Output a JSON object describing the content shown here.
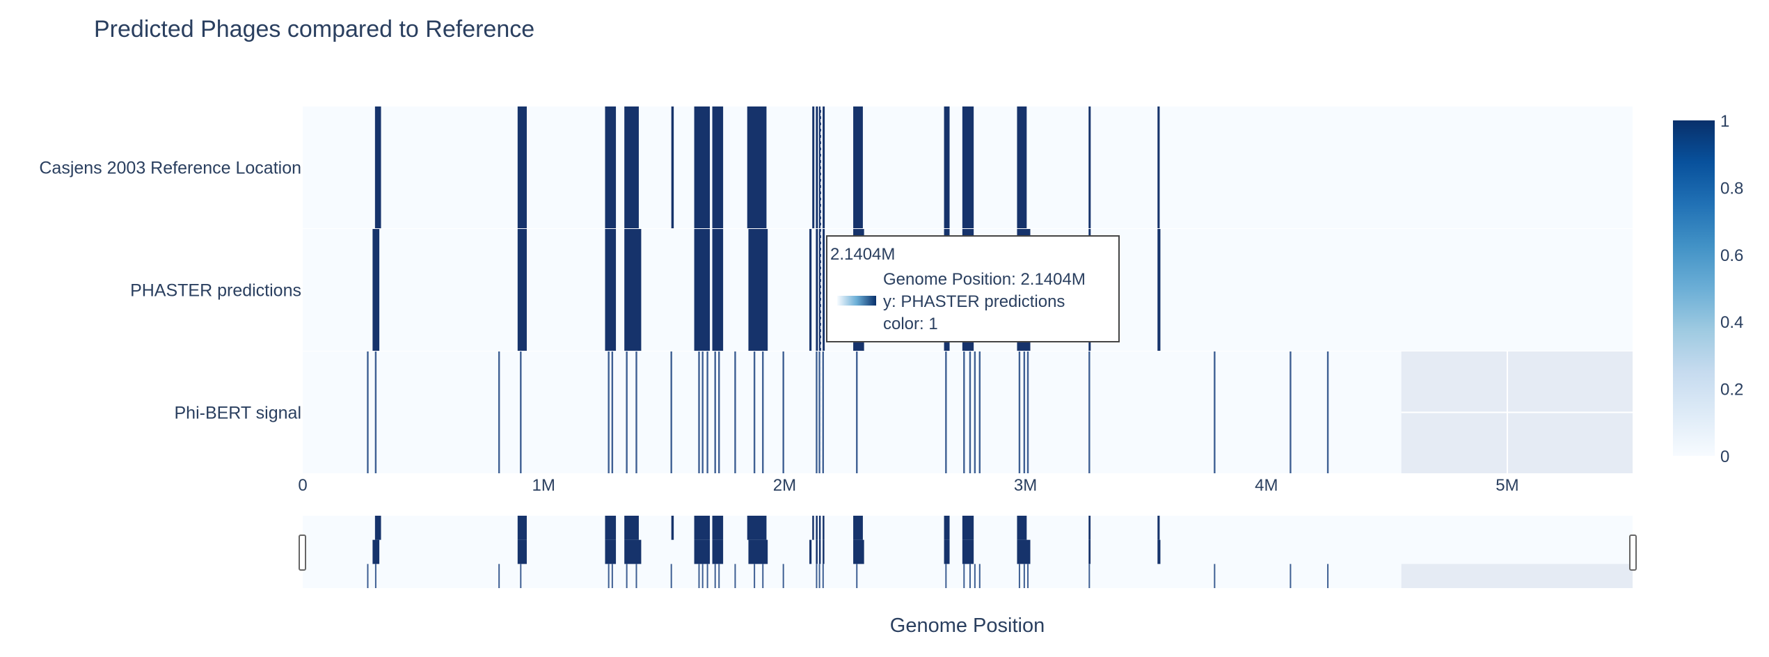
{
  "title": "Predicted Phages compared to Reference",
  "colors": {
    "low": "#f7fbff",
    "high": "#08306b",
    "bar": "#16336b",
    "thin": "#3e5f93",
    "nodata": "#e5ebf4",
    "text": "#2a3f5f"
  },
  "chart_data": {
    "type": "heatmap",
    "title": "Predicted Phages compared to Reference",
    "xlabel": "Genome Position",
    "ylabel": "",
    "rows": [
      "Casjens 2003 Reference Location",
      "PHASTER predictions",
      "Phi-BERT signal"
    ],
    "x_range": [
      0,
      5520000
    ],
    "x_ticks": [
      {
        "value": 0,
        "label": "0"
      },
      {
        "value": 1000000,
        "label": "1M"
      },
      {
        "value": 2000000,
        "label": "2M"
      },
      {
        "value": 3000000,
        "label": "3M"
      },
      {
        "value": 4000000,
        "label": "4M"
      },
      {
        "value": 5000000,
        "label": "5M"
      }
    ],
    "colorscale": "Blues",
    "color_range": [
      0,
      1
    ],
    "colorbar_ticks": [
      {
        "value": 0,
        "label": "0"
      },
      {
        "value": 0.2,
        "label": "0.2"
      },
      {
        "value": 0.4,
        "label": "0.4"
      },
      {
        "value": 0.6,
        "label": "0.6"
      },
      {
        "value": 0.8,
        "label": "0.8"
      },
      {
        "value": 1,
        "label": "1"
      }
    ],
    "no_data_from": 4560000,
    "series": [
      {
        "row": "Casjens 2003 Reference Location",
        "value": 1,
        "intervals": [
          [
            300000,
            325000
          ],
          [
            892000,
            930000
          ],
          [
            1255000,
            1300000
          ],
          [
            1335000,
            1395000
          ],
          [
            1530000,
            1540000
          ],
          [
            1625000,
            1690000
          ],
          [
            1700000,
            1745000
          ],
          [
            1845000,
            1925000
          ],
          [
            2115000,
            2122000
          ],
          [
            2130000,
            2137000
          ],
          [
            2143000,
            2150000
          ],
          [
            2158000,
            2165000
          ],
          [
            2285000,
            2325000
          ],
          [
            2662000,
            2685000
          ],
          [
            2738000,
            2785000
          ],
          [
            2965000,
            3005000
          ],
          [
            3262000,
            3270000
          ],
          [
            3548000,
            3557000
          ]
        ]
      },
      {
        "row": "PHASTER predictions",
        "value": 1,
        "intervals": [
          [
            290000,
            318000
          ],
          [
            892000,
            930000
          ],
          [
            1255000,
            1300000
          ],
          [
            1335000,
            1405000
          ],
          [
            1625000,
            1690000
          ],
          [
            1700000,
            1745000
          ],
          [
            1850000,
            1930000
          ],
          [
            2103000,
            2112000
          ],
          [
            2130000,
            2137000
          ],
          [
            2143000,
            2150000
          ],
          [
            2158000,
            2165000
          ],
          [
            2285000,
            2330000
          ],
          [
            2662000,
            2685000
          ],
          [
            2738000,
            2785000
          ],
          [
            2965000,
            3020000
          ],
          [
            3262000,
            3270000
          ],
          [
            3548000,
            3560000
          ]
        ]
      },
      {
        "row": "Phi-BERT signal",
        "value": 1,
        "positions": [
          270000,
          303000,
          815000,
          905000,
          1270000,
          1285000,
          1345000,
          1385000,
          1530000,
          1645000,
          1660000,
          1680000,
          1712000,
          1728000,
          1795000,
          1875000,
          1910000,
          1995000,
          2133000,
          2145000,
          2160000,
          2300000,
          2670000,
          2745000,
          2770000,
          2790000,
          2810000,
          2975000,
          2995000,
          3010000,
          3265000,
          3785000,
          4100000,
          4255000
        ]
      }
    ],
    "hover": {
      "header": "2.1404M",
      "lines": [
        "Genome Position: 2.1404M",
        "y: PHASTER predictions",
        "color: 1"
      ]
    }
  }
}
